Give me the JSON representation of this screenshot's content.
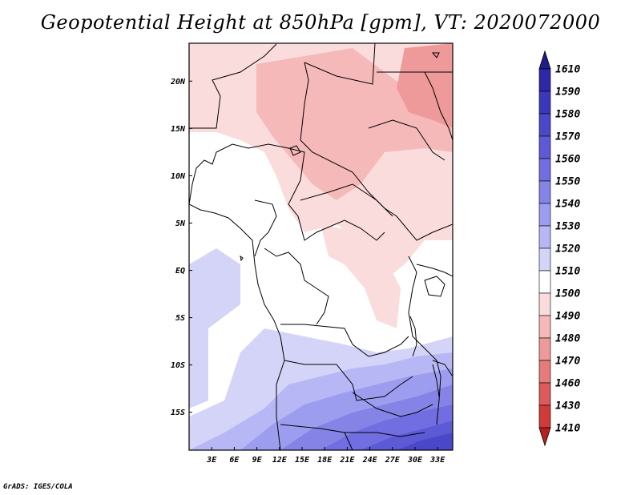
{
  "map": {
    "title": "Geopotential Height at 850hPa [gpm], VT: 2020072000",
    "credit": "GrADS: IGES/COLA",
    "lat_ticks": [
      "20N",
      "15N",
      "10N",
      "5N",
      "EQ",
      "5S",
      "10S",
      "15S"
    ],
    "lon_ticks": [
      "3E",
      "6E",
      "9E",
      "12E",
      "15E",
      "18E",
      "21E",
      "24E",
      "27E",
      "30E",
      "33E"
    ],
    "lat_range": [
      -19,
      24
    ],
    "lon_range": [
      0,
      35
    ]
  },
  "colorbar": {
    "labels": [
      "1610",
      "1590",
      "1580",
      "1570",
      "1560",
      "1550",
      "1540",
      "1530",
      "1520",
      "1510",
      "1500",
      "1490",
      "1480",
      "1470",
      "1460",
      "1430",
      "1410"
    ],
    "colors": [
      "#211b8c",
      "#2c28a6",
      "#3a37bb",
      "#4a48c8",
      "#5c5ad4",
      "#706ee0",
      "#8584e6",
      "#9d9df0",
      "#b7b7f5",
      "#d4d4f8",
      "#ffffff",
      "#fbdcdc",
      "#f5b9b9",
      "#ee9a9a",
      "#e57b7b",
      "#dc5a5a",
      "#cf3a3a",
      "#b82020"
    ]
  }
}
